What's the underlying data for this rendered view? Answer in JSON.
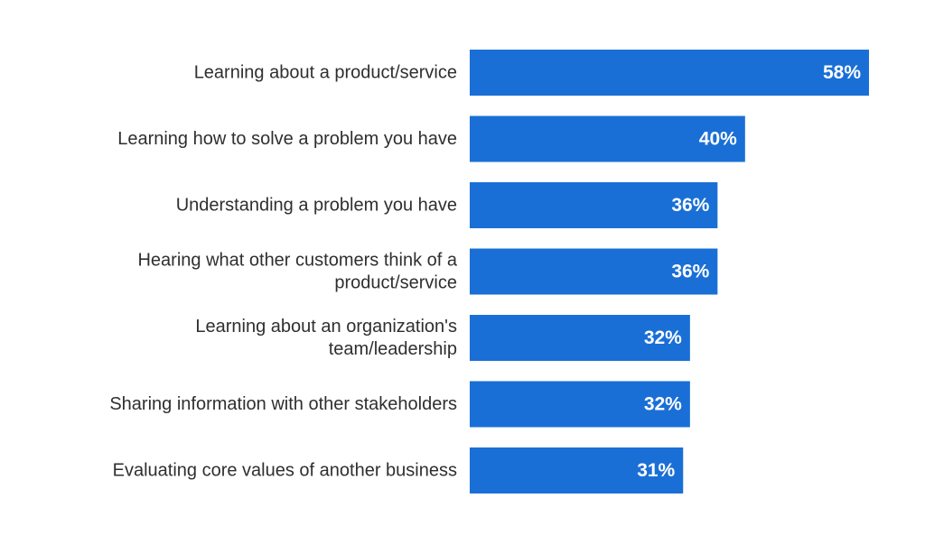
{
  "colors": {
    "bar": "#1a6fd6",
    "label": "#2f2f2f",
    "value_text": "#ffffff",
    "background": "#ffffff"
  },
  "chart_data": {
    "type": "bar",
    "orientation": "horizontal",
    "title": "",
    "xlabel": "",
    "ylabel": "",
    "grid": false,
    "xlim": [
      0,
      58
    ],
    "categories": [
      [
        "Learning about a product/service"
      ],
      [
        "Learning how to solve a problem you have"
      ],
      [
        "Understanding a problem you have"
      ],
      [
        "Hearing what other customers think of a",
        "product/service"
      ],
      [
        "Learning about an organization's",
        "team/leadership"
      ],
      [
        "Sharing information with other stakeholders"
      ],
      [
        "Evaluating core values of another business"
      ]
    ],
    "values": [
      58,
      40,
      36,
      36,
      32,
      32,
      31
    ],
    "value_labels": [
      "58%",
      "40%",
      "36%",
      "36%",
      "32%",
      "32%",
      "31%"
    ]
  }
}
